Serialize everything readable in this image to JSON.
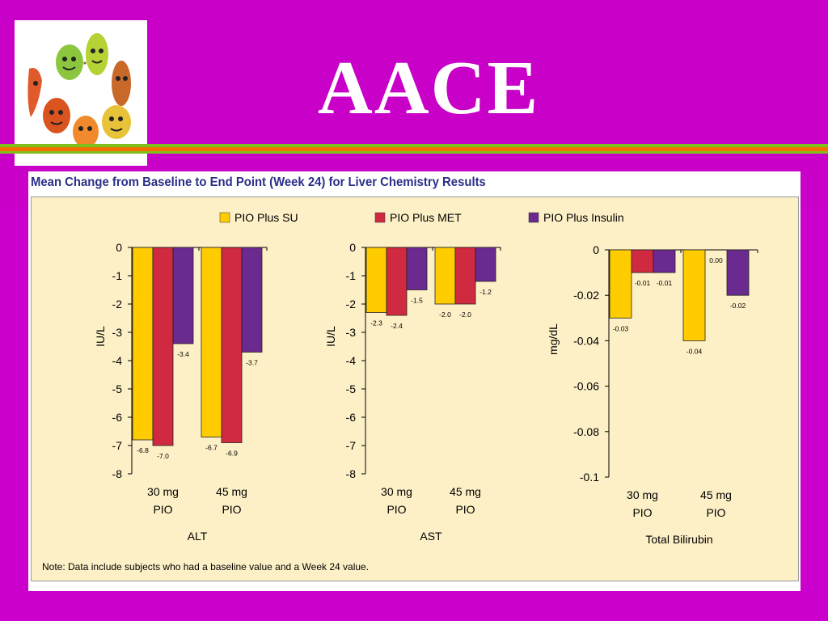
{
  "slide": {
    "title": "AACE",
    "logo_icon": "cartoon-organs-logo"
  },
  "colors": {
    "background": "#cc00cc",
    "title_text": "#ffffff",
    "stripe_green": "#7fbf1e",
    "stripe_orange": "#f07000",
    "panel_bg": "#fdf0c6",
    "figure_title": "#2b2f88"
  },
  "figure": {
    "title": "Mean Change from Baseline to End Point (Week 24) for Liver Chemistry Results",
    "note": "Note: Data include subjects who had a baseline value and a Week 24 value."
  },
  "chart_data": [
    {
      "type": "bar",
      "title": "ALT",
      "xlabel": "ALT",
      "ylabel": "IU/L",
      "categories": [
        "30 mg PIO",
        "45 mg PIO"
      ],
      "category_lines": [
        [
          "30 mg",
          "PIO"
        ],
        [
          "45 mg",
          "PIO"
        ]
      ],
      "ylim": [
        -8,
        0
      ],
      "yticks": [
        0,
        -1,
        -2,
        -3,
        -4,
        -5,
        -6,
        -7,
        -8
      ],
      "ytick_labels": [
        "0",
        "-1",
        "-2",
        "-3",
        "-4",
        "-5",
        "-6",
        "-7",
        "-8"
      ],
      "series": [
        {
          "name": "PIO Plus SU",
          "color": "#ffcc00",
          "values": [
            -6.8,
            -6.7
          ],
          "labels": [
            "-6.8",
            "-6.7"
          ]
        },
        {
          "name": "PIO Plus MET",
          "color": "#d02a40",
          "values": [
            -7.0,
            -6.9
          ],
          "labels": [
            "-7.0",
            "-6.9"
          ]
        },
        {
          "name": "PIO Plus Insulin",
          "color": "#6a2a90",
          "values": [
            -3.4,
            -3.7
          ],
          "labels": [
            "-3.4",
            "-3.7"
          ]
        }
      ]
    },
    {
      "type": "bar",
      "title": "AST",
      "xlabel": "AST",
      "ylabel": "IU/L",
      "categories": [
        "30 mg PIO",
        "45 mg PIO"
      ],
      "category_lines": [
        [
          "30 mg",
          "PIO"
        ],
        [
          "45 mg",
          "PIO"
        ]
      ],
      "ylim": [
        -8,
        0
      ],
      "yticks": [
        0,
        -1,
        -2,
        -3,
        -4,
        -5,
        -6,
        -7,
        -8
      ],
      "ytick_labels": [
        "0",
        "-1",
        "-2",
        "-3",
        "-4",
        "-5",
        "-6",
        "-7",
        "-8"
      ],
      "series": [
        {
          "name": "PIO Plus SU",
          "color": "#ffcc00",
          "values": [
            -2.3,
            -2.0
          ],
          "labels": [
            "-2.3",
            "-2.0"
          ]
        },
        {
          "name": "PIO Plus MET",
          "color": "#d02a40",
          "values": [
            -2.4,
            -2.0
          ],
          "labels": [
            "-2.4",
            "-2.0"
          ]
        },
        {
          "name": "PIO Plus Insulin",
          "color": "#6a2a90",
          "values": [
            -1.5,
            -1.2
          ],
          "labels": [
            "-1.5",
            "-1.2"
          ]
        }
      ]
    },
    {
      "type": "bar",
      "title": "Total Bilirubin",
      "xlabel": "Total Bilirubin",
      "ylabel": "mg/dL",
      "categories": [
        "30 mg PIO",
        "45 mg PIO"
      ],
      "category_lines": [
        [
          "30 mg",
          "PIO"
        ],
        [
          "45 mg",
          "PIO"
        ]
      ],
      "ylim": [
        -0.1,
        0
      ],
      "yticks": [
        0,
        -0.02,
        -0.04,
        -0.06,
        -0.08,
        -0.1
      ],
      "ytick_labels": [
        "0",
        "-0.02",
        "-0.04",
        "-0.06",
        "-0.08",
        "-0.1"
      ],
      "series": [
        {
          "name": "PIO Plus SU",
          "color": "#ffcc00",
          "values": [
            -0.03,
            -0.04
          ],
          "labels": [
            "-0.03",
            "-0.04"
          ]
        },
        {
          "name": "PIO Plus MET",
          "color": "#d02a40",
          "values": [
            -0.01,
            0.0
          ],
          "labels": [
            "-0.01",
            "0.00"
          ]
        },
        {
          "name": "PIO Plus Insulin",
          "color": "#6a2a90",
          "values": [
            -0.01,
            -0.02
          ],
          "labels": [
            "-0.01",
            "-0.02"
          ]
        }
      ]
    }
  ],
  "legend": {
    "placement": "top",
    "items": [
      {
        "name": "PIO Plus SU",
        "color": "#ffcc00"
      },
      {
        "name": "PIO Plus MET",
        "color": "#d02a40"
      },
      {
        "name": "PIO Plus Insulin",
        "color": "#6a2a90"
      }
    ]
  }
}
